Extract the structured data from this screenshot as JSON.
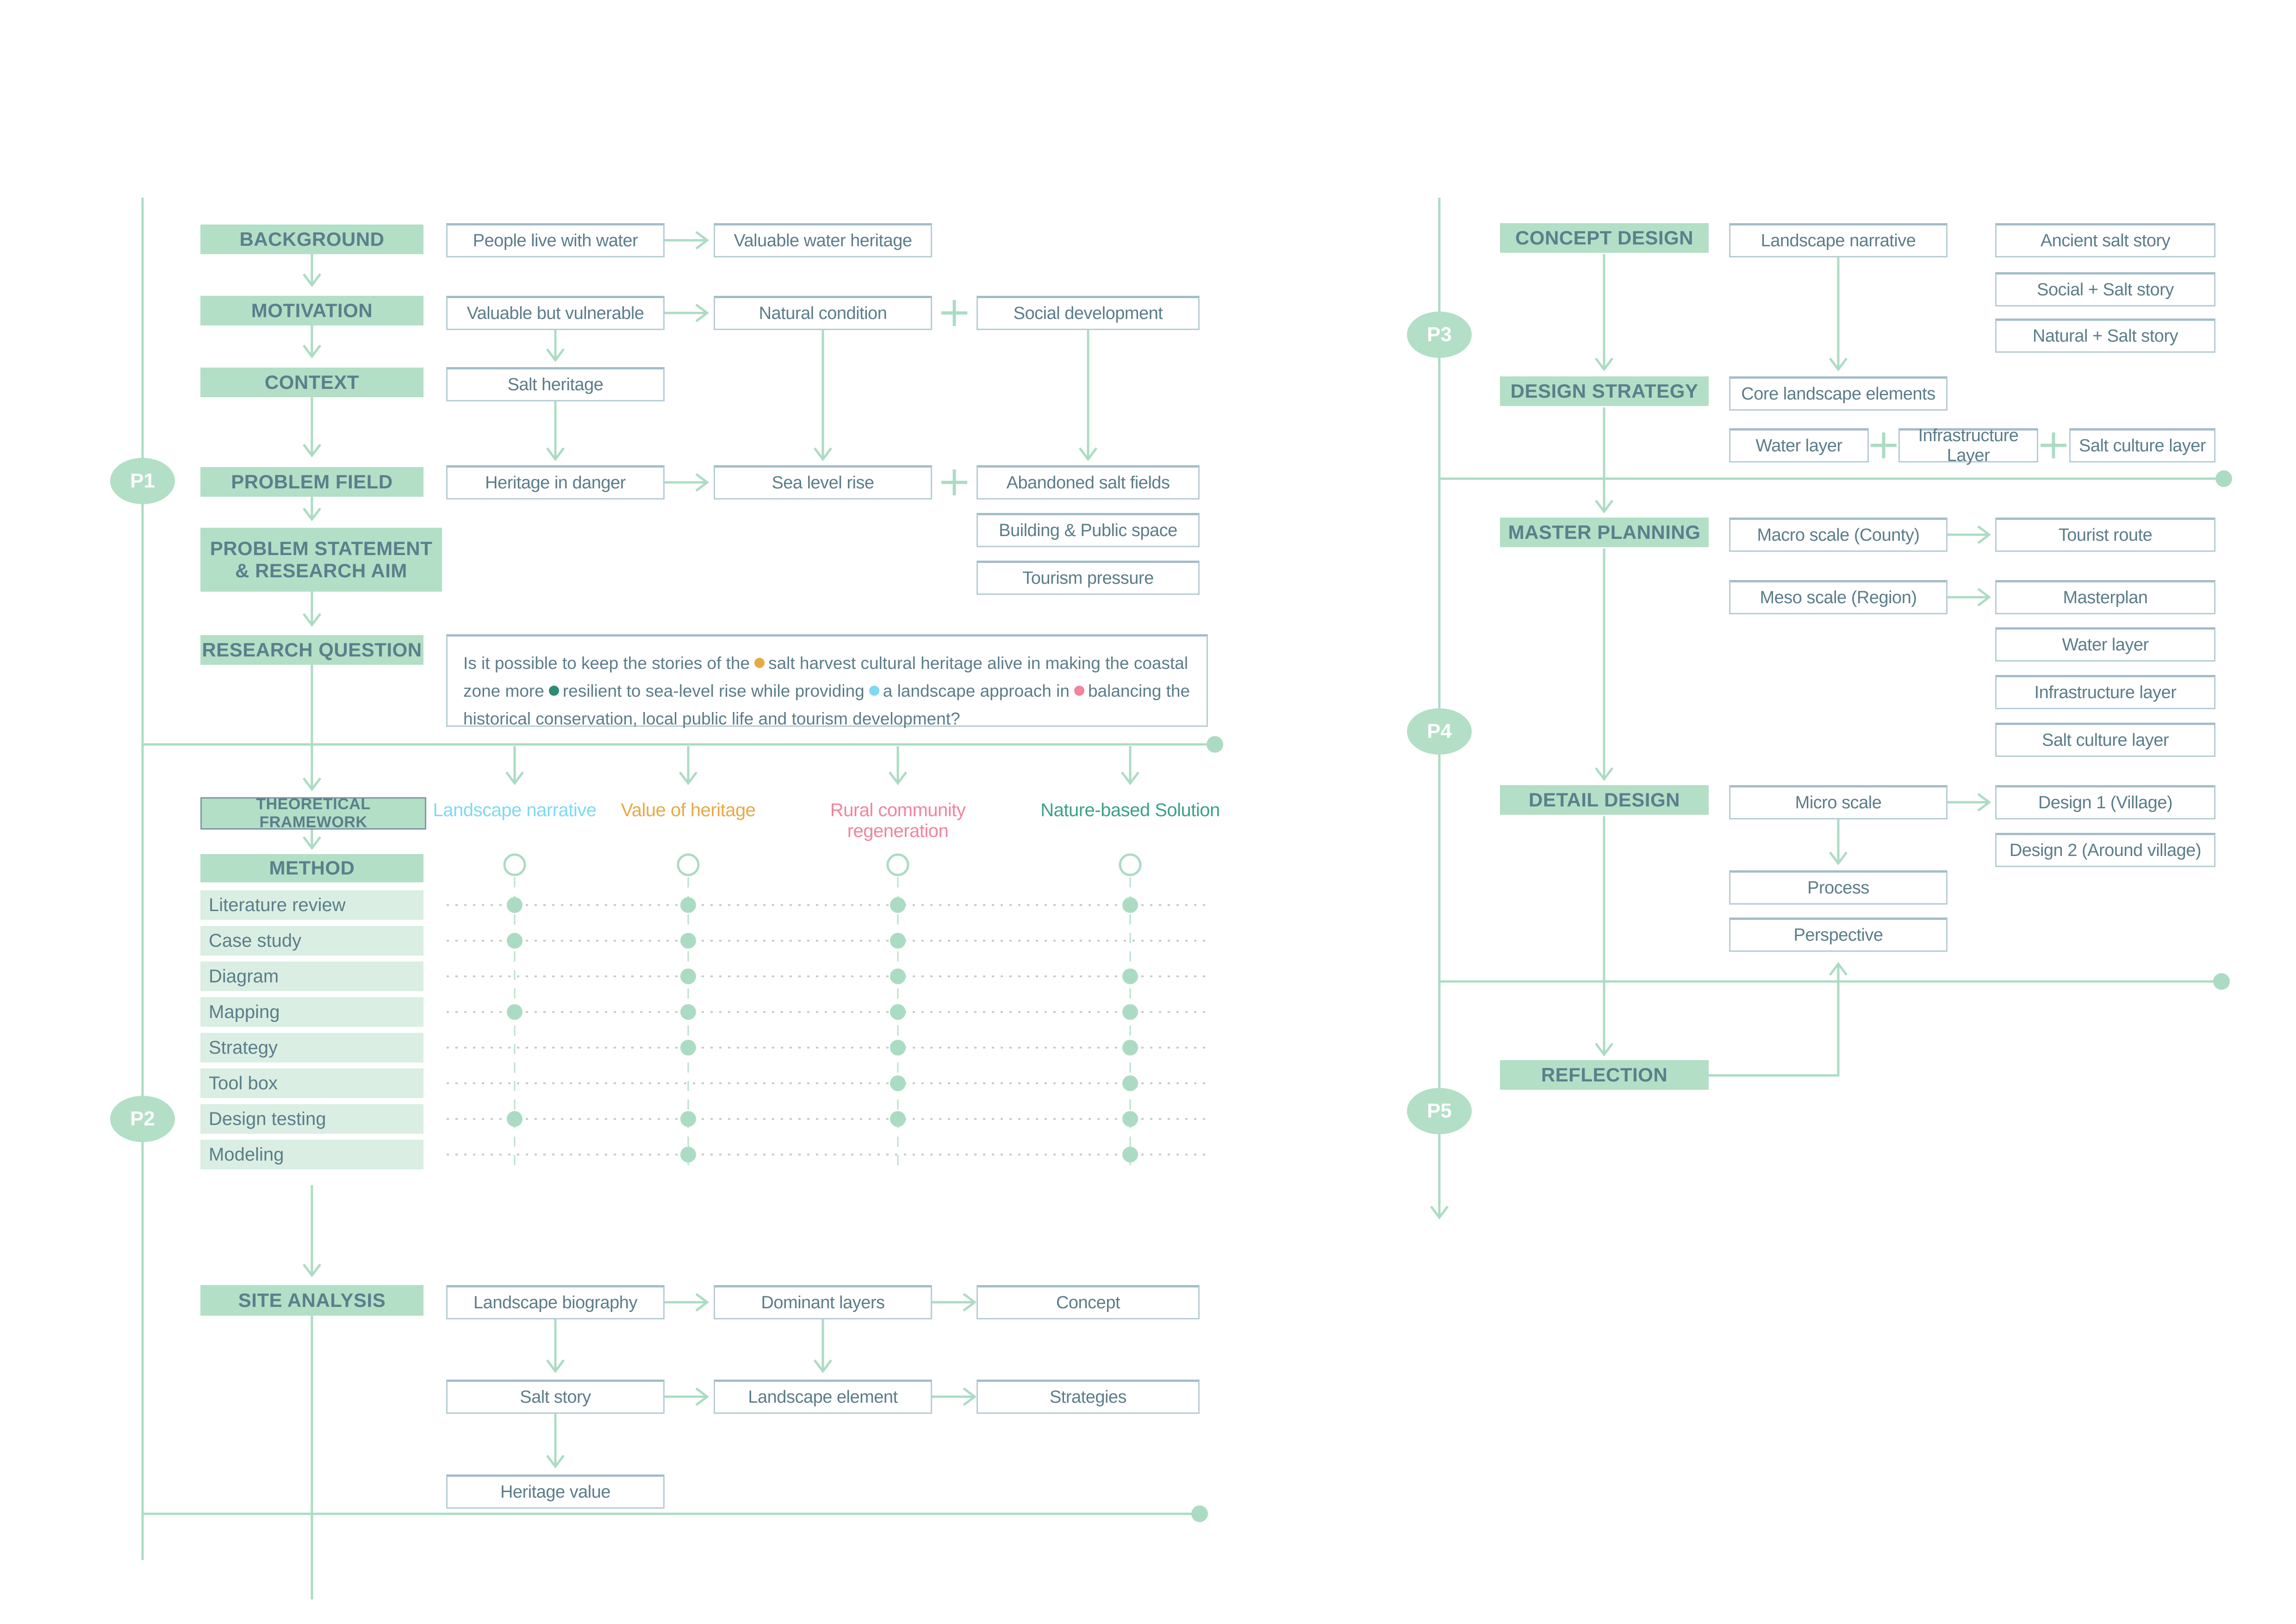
{
  "colors": {
    "sage": "#abdcc3",
    "sage_fill": "#b2dfc6",
    "sage_row": "#daeee3",
    "slate_text": "#5c7e8c",
    "box_text": "#5b7d89",
    "box_border": "#b7ccd4",
    "dotted_grid": "#c5cdc9",
    "cyan": "#7fd9f2",
    "orange": "#e8a943",
    "pink": "#f2849e",
    "teal": "#3ba188",
    "teal_dark": "#2f8b74"
  },
  "left": {
    "rail": {
      "p1": "P1",
      "p2": "P2"
    },
    "headers": {
      "background": "BACKGROUND",
      "motivation": "MOTIVATION",
      "context": "CONTEXT",
      "problem_field": "PROBLEM FIELD",
      "problem_statement": "PROBLEM STATEMENT & RESEARCH AIM",
      "research_question": "RESEARCH QUESTION",
      "theoretical_framework": "THEORETICAL FRAMEWORK",
      "method": "METHOD",
      "site_analysis": "SITE ANALYSIS"
    },
    "flow": {
      "people": "People live with water",
      "valuable_water_heritage": "Valuable water heritage",
      "valuable_vulnerable": "Valuable but vulnerable",
      "natural_condition": "Natural condition",
      "social_development": "Social development",
      "salt_heritage": "Salt heritage",
      "heritage_danger": "Heritage in danger",
      "sea_level_rise": "Sea level rise",
      "abandoned_salt_fields": "Abandoned salt fields",
      "building_public_space": "Building & Public space",
      "tourism_pressure": "Tourism pressure"
    },
    "research_question": {
      "segments": [
        {
          "text": "Is it possible to keep the stories of the"
        },
        {
          "dot": "#e8a943"
        },
        {
          "text": "salt harvest cultural heritage alive  in making the coastal zone more"
        },
        {
          "dot": "#2f8b74"
        },
        {
          "text": "resilient to sea-level rise while providing"
        },
        {
          "dot": "#7fd9f2"
        },
        {
          "text": "a landscape approach in"
        },
        {
          "dot": "#f2849e"
        },
        {
          "text": "balancing the historical conservation, local public life and tourism development?"
        }
      ]
    },
    "theory_columns": [
      {
        "label": "Landscape narrative",
        "color": "#7fd9f2"
      },
      {
        "label": "Value of heritage",
        "color": "#e8a943"
      },
      {
        "label": "Rural community regeneration",
        "color": "#f2849e"
      },
      {
        "label": "Nature-based Solution",
        "color": "#3ba188"
      }
    ],
    "method_matrix": {
      "rows": [
        {
          "label": "Literature review",
          "marks": [
            1,
            1,
            1,
            1
          ]
        },
        {
          "label": "Case study",
          "marks": [
            1,
            1,
            1,
            0
          ]
        },
        {
          "label": "Diagram",
          "marks": [
            0,
            1,
            1,
            1
          ]
        },
        {
          "label": "Mapping",
          "marks": [
            1,
            1,
            1,
            1
          ]
        },
        {
          "label": "Strategy",
          "marks": [
            0,
            1,
            1,
            1
          ]
        },
        {
          "label": "Tool box",
          "marks": [
            0,
            0,
            1,
            1
          ]
        },
        {
          "label": "Design testing",
          "marks": [
            1,
            1,
            1,
            1
          ]
        },
        {
          "label": "Modeling",
          "marks": [
            0,
            1,
            0,
            1
          ]
        }
      ]
    },
    "site": {
      "landscape_biography": "Landscape biography",
      "dominant_layers": "Dominant layers",
      "concept": "Concept",
      "salt_story": "Salt story",
      "landscape_element": "Landscape element",
      "strategies": "Strategies",
      "heritage_value": "Heritage value"
    }
  },
  "right": {
    "rail": {
      "p3": "P3",
      "p4": "P4",
      "p5": "P5"
    },
    "headers": {
      "concept_design": "CONCEPT DESIGN",
      "design_strategy": "DESIGN STRATEGY",
      "master_planning": "MASTER PLANNING",
      "detail_design": "DETAIL DESIGN",
      "reflection": "REFLECTION"
    },
    "flow": {
      "landscape_narrative": "Landscape narrative",
      "ancient_salt_story": "Ancient salt story",
      "social_salt_story": "Social + Salt story",
      "natural_salt_story": "Natural + Salt story",
      "core_landscape_elements": "Core landscape elements",
      "water_layer_strategy": "Water layer",
      "infrastructure_layer_strategy": "Infrastructure Layer",
      "salt_culture_layer_strategy": "Salt culture layer",
      "macro_scale": "Macro scale (County)",
      "tourist_route": "Tourist route",
      "meso_scale": "Meso scale (Region)",
      "masterplan": "Masterplan",
      "water_layer": "Water layer",
      "infrastructure_layer": "Infrastructure layer",
      "salt_culture_layer": "Salt culture layer",
      "micro_scale": "Micro scale",
      "design_1": "Design 1 (Village)",
      "design_2": "Design 2 (Around village)",
      "process": "Process",
      "perspective": "Perspective"
    }
  }
}
